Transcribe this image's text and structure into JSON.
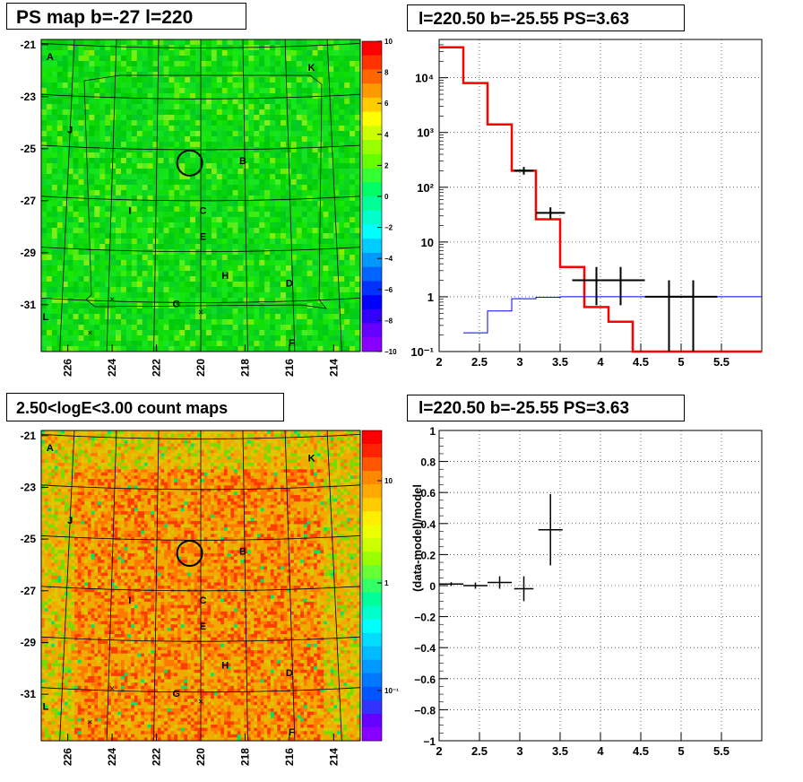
{
  "titles": {
    "map1": "PS map b=-27 l=220",
    "spectrum": "l=220.50 b=-25.55 PS=3.63",
    "map2": "2.50<logE<3.00 count maps",
    "residual": "l=220.50 b=-25.55 PS=3.63"
  },
  "chart_data": [
    {
      "type": "heatmap",
      "title": "PS map b=-27 l=220",
      "x_ticks": [
        "226",
        "224",
        "222",
        "220",
        "218",
        "216",
        "214"
      ],
      "y_ticks": [
        "-21",
        "-23",
        "-25",
        "-27",
        "-29",
        "-31"
      ],
      "xlim": [
        227.2,
        212.8
      ],
      "ylim": [
        -32.8,
        -20.8
      ],
      "colorbar": {
        "min": -10,
        "max": 10,
        "ticks": [
          "10",
          "8",
          "6",
          "4",
          "2",
          "0",
          "−2",
          "−4",
          "−6",
          "−8",
          "−10"
        ]
      },
      "marker_circle": {
        "l": 220.5,
        "b": -25.55
      },
      "source_labels": [
        {
          "text": "A",
          "l": 226.8,
          "b": -21.6
        },
        {
          "text": "K",
          "l": 215.0,
          "b": -22.0
        },
        {
          "text": "J",
          "l": 225.9,
          "b": -24.4
        },
        {
          "text": "B",
          "l": 218.1,
          "b": -25.6
        },
        {
          "text": "I",
          "l": 223.2,
          "b": -27.5
        },
        {
          "text": "C",
          "l": 219.9,
          "b": -27.5
        },
        {
          "text": "E",
          "l": 219.9,
          "b": -28.5
        },
        {
          "text": "H",
          "l": 218.9,
          "b": -30.0
        },
        {
          "text": "D",
          "l": 216.0,
          "b": -30.3
        },
        {
          "text": "G",
          "l": 221.1,
          "b": -31.1
        },
        {
          "text": "L",
          "l": 227.0,
          "b": -31.6
        },
        {
          "text": "F",
          "l": 215.9,
          "b": -32.6
        }
      ]
    },
    {
      "type": "line",
      "title": "l=220.50 b=-25.55 PS=3.63",
      "xlim": [
        2,
        6
      ],
      "ylim": [
        0.1,
        50000
      ],
      "y_scale": "log",
      "x_ticks": [
        "2",
        "2.5",
        "3",
        "3.5",
        "4",
        "4.5",
        "5",
        "5.5"
      ],
      "y_ticks": [
        "10⁻¹",
        "1",
        "10",
        "10²",
        "10³",
        "10⁴"
      ],
      "series": [
        {
          "color": "#ff0000",
          "kind": "step",
          "edges": [
            2.0,
            2.3,
            2.6,
            2.9,
            3.2,
            3.5,
            3.8,
            4.1,
            4.4,
            6.0
          ],
          "values": [
            36000,
            8000,
            1400,
            200,
            26,
            3.5,
            0.65,
            0.35,
            0.1
          ]
        },
        {
          "color": "#0000ff",
          "kind": "step",
          "edges": [
            2.3,
            2.6,
            2.9,
            3.2,
            3.5,
            6.0
          ],
          "values": [
            0.22,
            0.55,
            0.92,
            0.98,
            1.0
          ]
        },
        {
          "color": "#000000",
          "kind": "errorbars",
          "points": [
            {
              "x": 3.05,
              "y": 200,
              "xerr": 0.12,
              "ylo": 170,
              "yhi": 235
            },
            {
              "x": 3.38,
              "y": 34,
              "xerr": 0.18,
              "ylo": 26,
              "yhi": 43
            },
            {
              "x": 3.95,
              "y": 2.0,
              "xerr": 0.3,
              "ylo": 0.7,
              "yhi": 3.5
            },
            {
              "x": 4.25,
              "y": 2.0,
              "xerr": 0.3,
              "ylo": 0.7,
              "yhi": 3.5
            },
            {
              "x": 4.85,
              "y": 1.0,
              "xerr": 0.3,
              "ylo": 0.1,
              "yhi": 2.0
            },
            {
              "x": 5.15,
              "y": 1.0,
              "xerr": 0.3,
              "ylo": 0.1,
              "yhi": 2.0
            }
          ]
        }
      ],
      "grid": true
    },
    {
      "type": "heatmap",
      "title": "2.50<logE<3.00 count maps",
      "x_ticks": [
        "226",
        "224",
        "222",
        "220",
        "218",
        "216",
        "214"
      ],
      "y_ticks": [
        "-21",
        "-23",
        "-25",
        "-27",
        "-29",
        "-31"
      ],
      "xlim": [
        227.2,
        212.8
      ],
      "ylim": [
        -32.8,
        -20.8
      ],
      "colorbar": {
        "scale": "log",
        "min": 0.05,
        "max": 30,
        "ticks": [
          "10",
          "1",
          "10⁻¹"
        ]
      },
      "marker_circle": {
        "l": 220.5,
        "b": -25.55
      }
    },
    {
      "type": "scatter",
      "title": "l=220.50 b=-25.55 PS=3.63",
      "ylabel": "(data-model)/model",
      "xlim": [
        2,
        6
      ],
      "ylim": [
        -1,
        1
      ],
      "x_ticks": [
        "2",
        "2.5",
        "3",
        "3.5",
        "4",
        "4.5",
        "5",
        "5.5"
      ],
      "y_ticks": [
        "−1",
        "−0.8",
        "−0.6",
        "−0.4",
        "−0.2",
        "0",
        "0.2",
        "0.4",
        "0.6",
        "0.8",
        "1"
      ],
      "points": [
        {
          "x": 2.15,
          "y": 0.01,
          "xerr": 0.15,
          "yerr": 0.012
        },
        {
          "x": 2.45,
          "y": 0.0,
          "xerr": 0.15,
          "yerr": 0.02
        },
        {
          "x": 2.75,
          "y": 0.02,
          "xerr": 0.15,
          "yerr": 0.04
        },
        {
          "x": 3.05,
          "y": -0.02,
          "xerr": 0.12,
          "yerr": 0.08
        },
        {
          "x": 3.38,
          "y": 0.36,
          "xerr": 0.15,
          "yerr": 0.23
        }
      ],
      "grid": true
    }
  ]
}
